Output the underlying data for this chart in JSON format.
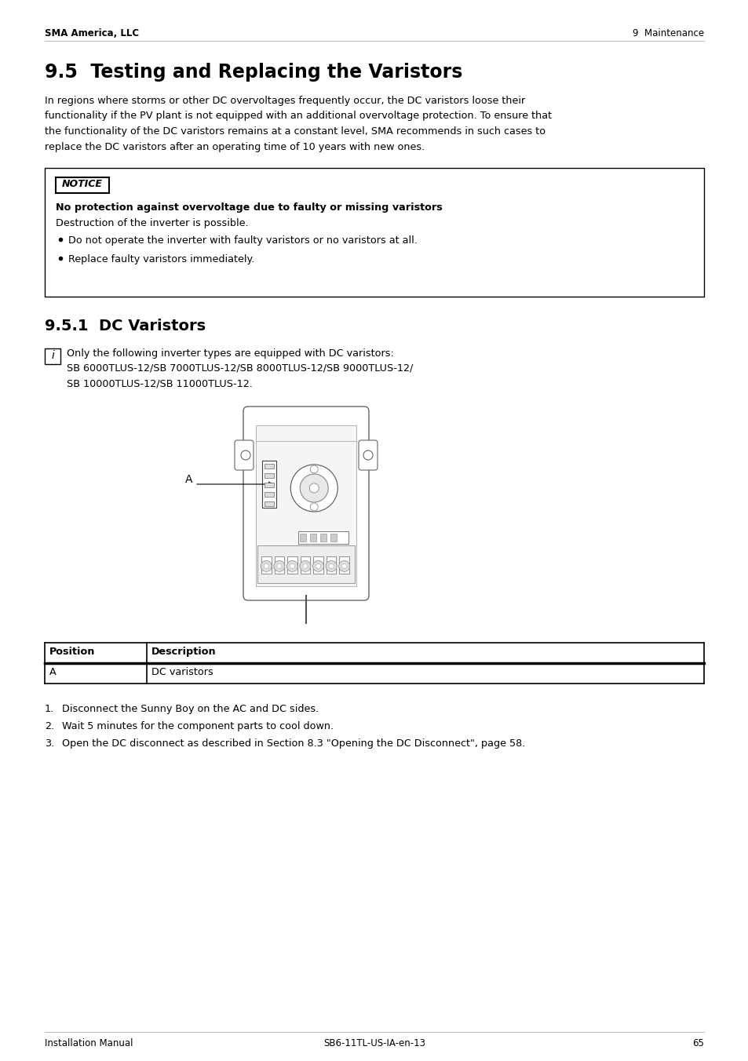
{
  "page_title_left": "SMA America, LLC",
  "page_title_right": "9  Maintenance",
  "section_title": "9.5  Testing and Replacing the Varistors",
  "body_lines": [
    "In regions where storms or other DC overvoltages frequently occur, the DC varistors loose their",
    "functionality if the PV plant is not equipped with an additional overvoltage protection. To ensure that",
    "the functionality of the DC varistors remains at a constant level, SMA recommends in such cases to",
    "replace the DC varistors after an operating time of 10 years with new ones."
  ],
  "notice_title": "NOTICE",
  "notice_warning": "No protection against overvoltage due to faulty or missing varistors",
  "notice_body": "Destruction of the inverter is possible.",
  "notice_bullets": [
    "Do not operate the inverter with faulty varistors or no varistors at all.",
    "Replace faulty varistors immediately."
  ],
  "subsection_title": "9.5.1  DC Varistors",
  "info_text_line1": "Only the following inverter types are equipped with DC varistors:",
  "info_text_line2": "SB 6000TLUS-12/SB 7000TLUS-12/SB 8000TLUS-12/SB 9000TLUS-12/",
  "info_text_line3": "SB 10000TLUS-12/SB 11000TLUS-12.",
  "table_header_col1": "Position",
  "table_header_col2": "Description",
  "table_row_col1": "A",
  "table_row_col2": "DC varistors",
  "steps": [
    "Disconnect the Sunny Boy on the AC and DC sides.",
    "Wait 5 minutes for the component parts to cool down.",
    "Open the DC disconnect as described in Section 8.3 \"Opening the DC Disconnect\", page 58."
  ],
  "footer_left": "Installation Manual",
  "footer_center": "SB6-11TL-US-IA-en-13",
  "footer_page": "65",
  "bg_color": "#ffffff",
  "text_color": "#000000"
}
